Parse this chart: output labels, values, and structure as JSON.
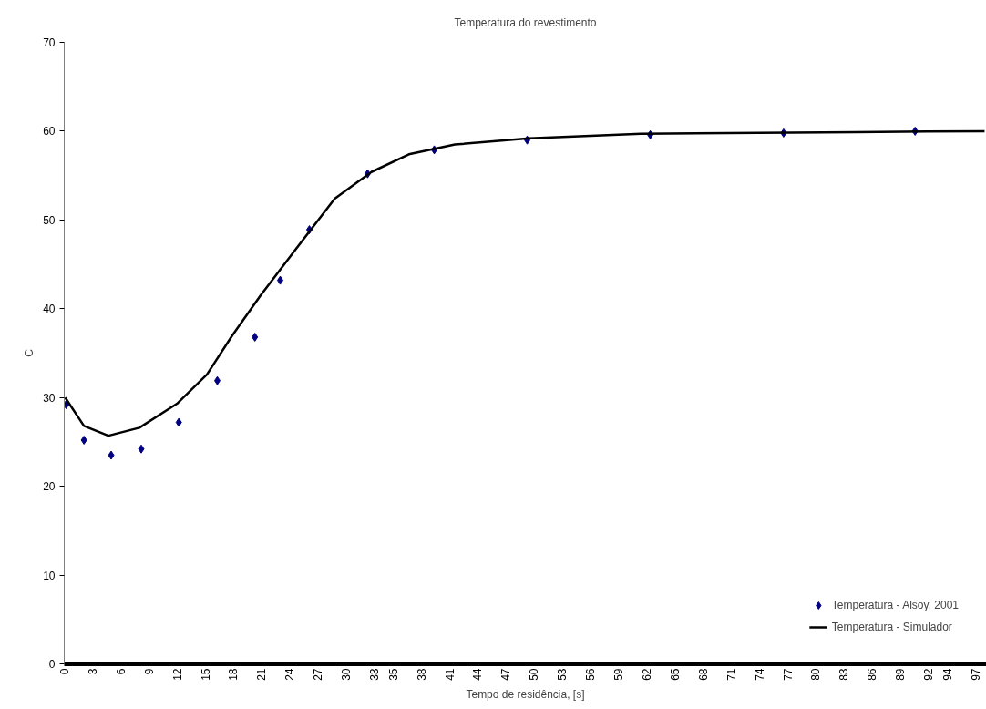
{
  "chart_data": {
    "type": "scatter",
    "title": "Temperatura do revestimento",
    "xlabel": "Tempo de residência, [s]",
    "ylabel": "C",
    "xlim": [
      0,
      98.2
    ],
    "xticks": [
      0,
      3,
      6,
      9,
      12,
      15,
      18,
      21,
      24,
      27,
      30,
      33,
      35,
      38,
      41,
      44,
      47,
      50,
      53,
      56,
      59,
      62,
      65,
      68,
      71,
      74,
      77,
      80,
      83,
      86,
      89,
      92,
      94,
      97
    ],
    "ylim": [
      0,
      70
    ],
    "yticks": [
      0,
      10,
      20,
      30,
      40,
      50,
      60,
      70
    ],
    "grid": false,
    "legend": "bottom right",
    "series": [
      {
        "name": "Temperatura - Alsoy, 2001",
        "marker": "diamond",
        "color": "#000080",
        "x": [
          0.2,
          2.1,
          5.0,
          8.2,
          12.2,
          16.3,
          20.3,
          23.0,
          26.1,
          32.3,
          39.4,
          49.3,
          62.4,
          76.6,
          90.6
        ],
        "values": [
          29.2,
          25.2,
          23.5,
          24.2,
          27.2,
          31.9,
          36.8,
          43.2,
          48.9,
          55.2,
          57.9,
          59.0,
          59.6,
          59.8,
          60.0
        ]
      },
      {
        "name": "Temperatura - Simulador",
        "type": "line",
        "marker": "none",
        "line_style": "solid",
        "color": "#000000",
        "x": [
          0.1,
          2.1,
          4.7,
          8.0,
          12.0,
          15.2,
          17.9,
          20.9,
          24.8,
          28.8,
          32.7,
          36.7,
          41.6,
          49.5,
          61.4,
          84.2,
          98.0
        ],
        "values": [
          30.0,
          26.8,
          25.7,
          26.6,
          29.3,
          32.6,
          37.0,
          41.5,
          46.9,
          52.4,
          55.4,
          57.4,
          58.5,
          59.2,
          59.7,
          59.9,
          60.0
        ]
      }
    ]
  }
}
